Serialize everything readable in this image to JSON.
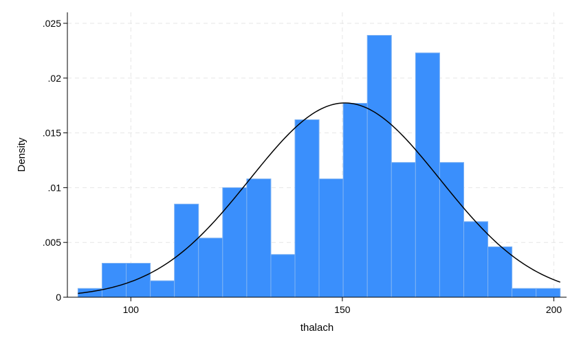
{
  "chart_data": {
    "type": "bar",
    "subtype": "histogram-with-normal-density",
    "xlabel": "thalach",
    "ylabel": "Density",
    "xlim": [
      85,
      203
    ],
    "ylim": [
      0,
      0.026
    ],
    "x_ticks": [
      100,
      150,
      200
    ],
    "x_tick_labels": [
      "100",
      "150",
      "200"
    ],
    "y_ticks": [
      0,
      0.005,
      0.01,
      0.015,
      0.02,
      0.025
    ],
    "y_tick_labels": [
      "0",
      ".005",
      ".01",
      ".015",
      ".02",
      ".025"
    ],
    "grid": true,
    "bins": {
      "edges": [
        87.5,
        93.2,
        98.9,
        104.6,
        110.3,
        116.0,
        121.7,
        127.4,
        133.1,
        138.8,
        144.5,
        150.2,
        155.9,
        161.6,
        167.3,
        173.0,
        178.7,
        184.4,
        190.1,
        195.8,
        201.5
      ],
      "density": [
        0.0008,
        0.0031,
        0.0031,
        0.0015,
        0.0085,
        0.0054,
        0.01,
        0.0108,
        0.0039,
        0.0162,
        0.0108,
        0.0177,
        0.0239,
        0.0123,
        0.0223,
        0.0123,
        0.0069,
        0.0046,
        0.0008,
        0.0008
      ]
    },
    "normal_curve": {
      "mean": 150.6,
      "sd": 22.5,
      "range": [
        87.5,
        201.5
      ]
    },
    "colors": {
      "bar_fill": "#3a8ffc",
      "bar_edge": "#7fb3f3",
      "curve": "#000000",
      "grid": "#e6e6e6"
    }
  }
}
